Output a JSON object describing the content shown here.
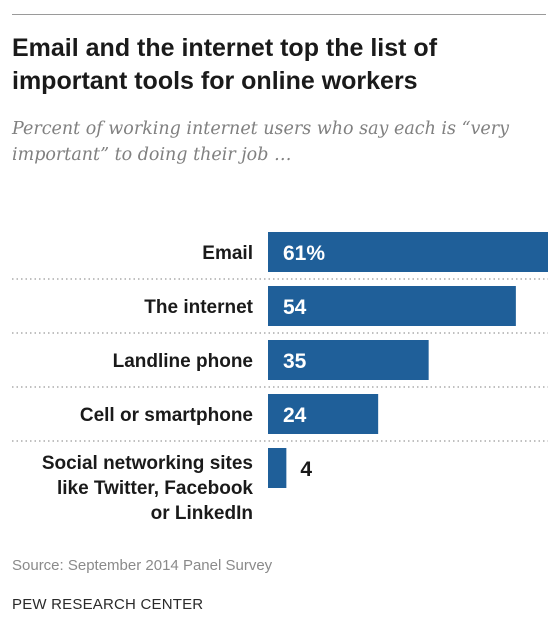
{
  "title": "Email and the internet top the list of important tools for online workers",
  "subtitle": "Percent of working internet users who say each is “very important” to doing their job …",
  "source": "Source: September 2014 Panel Survey",
  "credit": "PEW RESEARCH CENTER",
  "chart_data": {
    "type": "bar",
    "orientation": "horizontal",
    "categories": [
      [
        "Email"
      ],
      [
        "The internet"
      ],
      [
        "Landline phone"
      ],
      [
        "Cell or smartphone"
      ],
      [
        "Social networking sites",
        "like Twitter, Facebook",
        "or LinkedIn"
      ]
    ],
    "values": [
      61,
      54,
      35,
      24,
      4
    ],
    "value_labels": [
      "61%",
      "54",
      "35",
      "24",
      "4"
    ],
    "xlim": [
      0,
      61
    ],
    "bar_color": "#1f5f99",
    "inside_label_color": "#ffffff",
    "outside_label_color": "#1a1a1a",
    "separator_color": "#9a9a9a",
    "grid": false,
    "legend": "none"
  }
}
